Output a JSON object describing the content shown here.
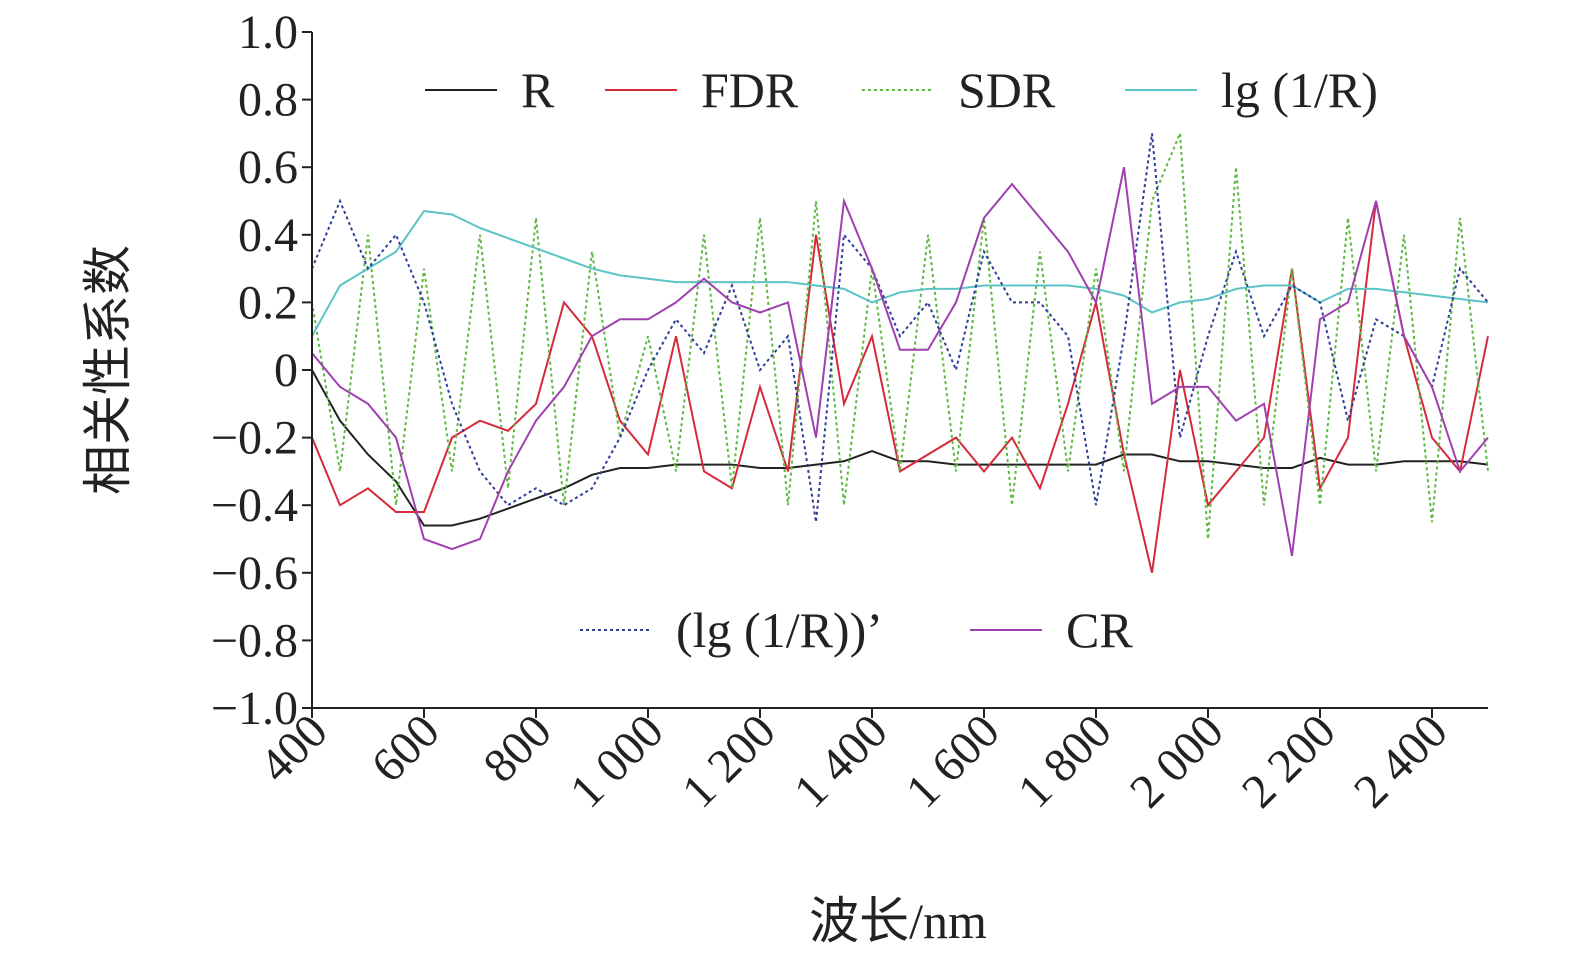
{
  "chart_data": {
    "type": "line",
    "x_label": "波长/nm",
    "y_label": "相关性系数",
    "x": [
      400,
      450,
      500,
      550,
      600,
      650,
      700,
      750,
      800,
      850,
      900,
      950,
      1000,
      1050,
      1100,
      1150,
      1200,
      1250,
      1300,
      1350,
      1400,
      1450,
      1500,
      1550,
      1600,
      1650,
      1700,
      1750,
      1800,
      1850,
      1900,
      1950,
      2000,
      2050,
      2100,
      2150,
      2200,
      2250,
      2300,
      2350,
      2400,
      2450,
      2500
    ],
    "series": [
      {
        "name": "R",
        "color": "#222222",
        "line_style": "solid",
        "values": [
          0.0,
          -0.15,
          -0.25,
          -0.33,
          -0.46,
          -0.46,
          -0.44,
          -0.41,
          -0.38,
          -0.35,
          -0.31,
          -0.29,
          -0.29,
          -0.28,
          -0.28,
          -0.28,
          -0.29,
          -0.29,
          -0.28,
          -0.27,
          -0.24,
          -0.27,
          -0.27,
          -0.28,
          -0.28,
          -0.28,
          -0.28,
          -0.28,
          -0.28,
          -0.25,
          -0.25,
          -0.27,
          -0.27,
          -0.28,
          -0.29,
          -0.29,
          -0.26,
          -0.28,
          -0.28,
          -0.27,
          -0.27,
          -0.27,
          -0.28
        ]
      },
      {
        "name": "FDR",
        "color": "#d62a3a",
        "line_style": "solid",
        "values": [
          -0.2,
          -0.4,
          -0.35,
          -0.42,
          -0.42,
          -0.2,
          -0.15,
          -0.18,
          -0.1,
          0.2,
          0.1,
          -0.15,
          -0.25,
          0.1,
          -0.3,
          -0.35,
          -0.05,
          -0.3,
          0.4,
          -0.1,
          0.1,
          -0.3,
          -0.25,
          -0.2,
          -0.3,
          -0.2,
          -0.35,
          -0.1,
          0.2,
          -0.25,
          -0.6,
          0.0,
          -0.4,
          -0.3,
          -0.2,
          0.3,
          -0.35,
          -0.2,
          0.5,
          0.1,
          -0.2,
          -0.3,
          0.1
        ]
      },
      {
        "name": "SDR",
        "color": "#5cb840",
        "line_style": "dotted",
        "values": [
          0.2,
          -0.3,
          0.4,
          -0.4,
          0.3,
          -0.3,
          0.4,
          -0.35,
          0.45,
          -0.4,
          0.35,
          -0.2,
          0.1,
          -0.3,
          0.4,
          -0.35,
          0.45,
          -0.4,
          0.5,
          -0.4,
          0.3,
          -0.3,
          0.4,
          -0.3,
          0.45,
          -0.4,
          0.35,
          -0.3,
          0.3,
          -0.3,
          0.5,
          0.7,
          -0.5,
          0.6,
          -0.4,
          0.3,
          -0.4,
          0.45,
          -0.3,
          0.4,
          -0.45,
          0.45,
          -0.3
        ]
      },
      {
        "name": "lg (1/R)",
        "color": "#5cc4c4",
        "line_style": "solid",
        "values": [
          0.1,
          0.25,
          0.3,
          0.35,
          0.47,
          0.46,
          0.42,
          0.39,
          0.36,
          0.33,
          0.3,
          0.28,
          0.27,
          0.26,
          0.26,
          0.26,
          0.26,
          0.26,
          0.25,
          0.24,
          0.2,
          0.23,
          0.24,
          0.24,
          0.25,
          0.25,
          0.25,
          0.25,
          0.24,
          0.22,
          0.17,
          0.2,
          0.21,
          0.24,
          0.25,
          0.25,
          0.2,
          0.24,
          0.24,
          0.23,
          0.22,
          0.21,
          0.2
        ]
      },
      {
        "name": "(lg (1/R))’",
        "color": "#2e3f9a",
        "line_style": "dotted",
        "values": [
          0.3,
          0.5,
          0.3,
          0.4,
          0.2,
          -0.1,
          -0.3,
          -0.4,
          -0.35,
          -0.4,
          -0.35,
          -0.2,
          0.0,
          0.15,
          0.05,
          0.25,
          0.0,
          0.1,
          -0.45,
          0.4,
          0.3,
          0.1,
          0.2,
          0.0,
          0.35,
          0.2,
          0.2,
          0.1,
          -0.4,
          0.1,
          0.7,
          -0.2,
          0.1,
          0.35,
          0.1,
          0.25,
          0.2,
          -0.15,
          0.15,
          0.1,
          -0.05,
          0.3,
          0.2
        ]
      },
      {
        "name": "CR",
        "color": "#a040b0",
        "line_style": "solid",
        "values": [
          0.05,
          -0.05,
          -0.1,
          -0.2,
          -0.5,
          -0.53,
          -0.5,
          -0.3,
          -0.15,
          -0.05,
          0.1,
          0.15,
          0.15,
          0.2,
          0.27,
          0.2,
          0.17,
          0.2,
          -0.2,
          0.5,
          0.3,
          0.06,
          0.06,
          0.2,
          0.45,
          0.55,
          0.45,
          0.35,
          0.2,
          0.6,
          -0.1,
          -0.05,
          -0.05,
          -0.15,
          -0.1,
          -0.55,
          0.15,
          0.2,
          0.5,
          0.1,
          -0.05,
          -0.3,
          -0.2
        ]
      }
    ],
    "xlim": [
      400,
      2500
    ],
    "ylim": [
      -1,
      1
    ],
    "xticks": [
      400,
      600,
      800,
      {
        "value": 1000,
        "label": "1 000"
      },
      {
        "value": 1200,
        "label": "1 200"
      },
      {
        "value": 1400,
        "label": "1 400"
      },
      {
        "value": 1600,
        "label": "1 600"
      },
      {
        "value": 1800,
        "label": "1 800"
      },
      {
        "value": 2000,
        "label": "2 000"
      },
      {
        "value": 2200,
        "label": "2 200"
      },
      {
        "value": 2400,
        "label": "2 400"
      }
    ],
    "yticks": [
      {
        "value": 1,
        "label": "1.0"
      },
      0.8,
      0.6,
      0.4,
      0.2,
      0,
      {
        "value": -0.2,
        "label": "−0.2"
      },
      {
        "value": -0.4,
        "label": "−0.4"
      },
      {
        "value": -0.6,
        "label": "−0.6"
      },
      {
        "value": -0.8,
        "label": "−0.8"
      },
      {
        "value": -1,
        "label": "−1.0"
      }
    ],
    "grid": false
  }
}
